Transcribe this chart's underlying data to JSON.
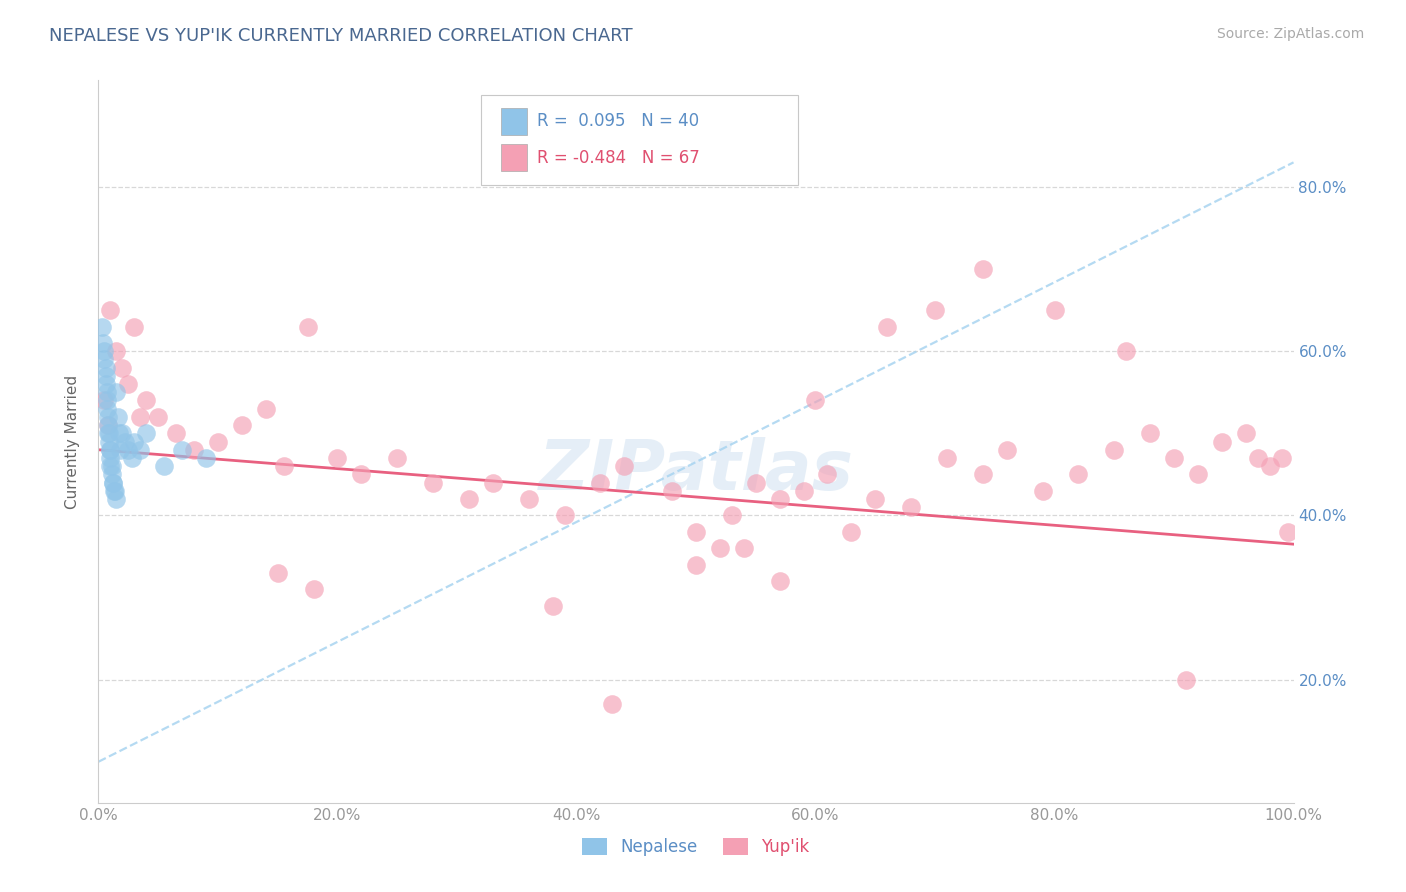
{
  "title": "NEPALESE VS YUP'IK CURRENTLY MARRIED CORRELATION CHART",
  "source_text": "Source: ZipAtlas.com",
  "ylabel": "Currently Married",
  "legend_label1": "Nepalese",
  "legend_label2": "Yup'ik",
  "R1_str": "0.095",
  "N1": 40,
  "R2_str": "-0.484",
  "N2": 67,
  "xlim": [
    0.0,
    1.0
  ],
  "ylim": [
    0.05,
    0.93
  ],
  "xtick_labels": [
    "0.0%",
    "20.0%",
    "40.0%",
    "60.0%",
    "80.0%",
    "100.0%"
  ],
  "xtick_vals": [
    0.0,
    0.2,
    0.4,
    0.6,
    0.8,
    1.0
  ],
  "ytick_labels": [
    "20.0%",
    "40.0%",
    "60.0%",
    "80.0%"
  ],
  "ytick_vals": [
    0.2,
    0.4,
    0.6,
    0.8
  ],
  "color_blue": "#90c4e8",
  "color_pink": "#f4a0b4",
  "color_line_blue": "#a8d4f0",
  "color_line_pink": "#e86080",
  "title_color": "#4a6890",
  "axis_color": "#999999",
  "grid_color": "#d8d8d8",
  "source_color": "#aaaaaa",
  "watermark_color": "#ccdff0",
  "nepalese_trendline": [
    0.0,
    1.0,
    0.1,
    0.83
  ],
  "yupik_trendline": [
    0.0,
    1.0,
    0.48,
    0.365
  ],
  "nepalese_x": [
    0.003,
    0.004,
    0.005,
    0.005,
    0.006,
    0.006,
    0.006,
    0.007,
    0.007,
    0.007,
    0.008,
    0.008,
    0.008,
    0.009,
    0.009,
    0.01,
    0.01,
    0.01,
    0.01,
    0.011,
    0.011,
    0.012,
    0.012,
    0.013,
    0.014,
    0.015,
    0.015,
    0.016,
    0.017,
    0.018,
    0.02,
    0.022,
    0.025,
    0.028,
    0.03,
    0.035,
    0.04,
    0.055,
    0.07,
    0.09
  ],
  "nepalese_y": [
    0.63,
    0.61,
    0.6,
    0.59,
    0.58,
    0.57,
    0.56,
    0.55,
    0.54,
    0.53,
    0.52,
    0.51,
    0.5,
    0.5,
    0.49,
    0.48,
    0.48,
    0.47,
    0.46,
    0.46,
    0.45,
    0.44,
    0.44,
    0.43,
    0.43,
    0.42,
    0.55,
    0.52,
    0.5,
    0.48,
    0.5,
    0.49,
    0.48,
    0.47,
    0.49,
    0.48,
    0.5,
    0.46,
    0.48,
    0.47
  ],
  "yupik_x": [
    0.005,
    0.008,
    0.01,
    0.015,
    0.02,
    0.025,
    0.03,
    0.035,
    0.04,
    0.05,
    0.065,
    0.08,
    0.1,
    0.12,
    0.14,
    0.155,
    0.175,
    0.2,
    0.22,
    0.25,
    0.28,
    0.31,
    0.33,
    0.36,
    0.39,
    0.42,
    0.44,
    0.48,
    0.5,
    0.53,
    0.55,
    0.57,
    0.59,
    0.61,
    0.63,
    0.65,
    0.68,
    0.71,
    0.74,
    0.76,
    0.79,
    0.82,
    0.85,
    0.88,
    0.9,
    0.92,
    0.94,
    0.96,
    0.97,
    0.98,
    0.99,
    0.995,
    0.15,
    0.18,
    0.5,
    0.54,
    0.6,
    0.66,
    0.7,
    0.74,
    0.8,
    0.86,
    0.91,
    0.38,
    0.43,
    0.52,
    0.57
  ],
  "yupik_y": [
    0.54,
    0.51,
    0.65,
    0.6,
    0.58,
    0.56,
    0.63,
    0.52,
    0.54,
    0.52,
    0.5,
    0.48,
    0.49,
    0.51,
    0.53,
    0.46,
    0.63,
    0.47,
    0.45,
    0.47,
    0.44,
    0.42,
    0.44,
    0.42,
    0.4,
    0.44,
    0.46,
    0.43,
    0.38,
    0.4,
    0.44,
    0.42,
    0.43,
    0.45,
    0.38,
    0.42,
    0.41,
    0.47,
    0.45,
    0.48,
    0.43,
    0.45,
    0.48,
    0.5,
    0.47,
    0.45,
    0.49,
    0.5,
    0.47,
    0.46,
    0.47,
    0.38,
    0.33,
    0.31,
    0.34,
    0.36,
    0.54,
    0.63,
    0.65,
    0.7,
    0.65,
    0.6,
    0.2,
    0.29,
    0.17,
    0.36,
    0.32
  ]
}
